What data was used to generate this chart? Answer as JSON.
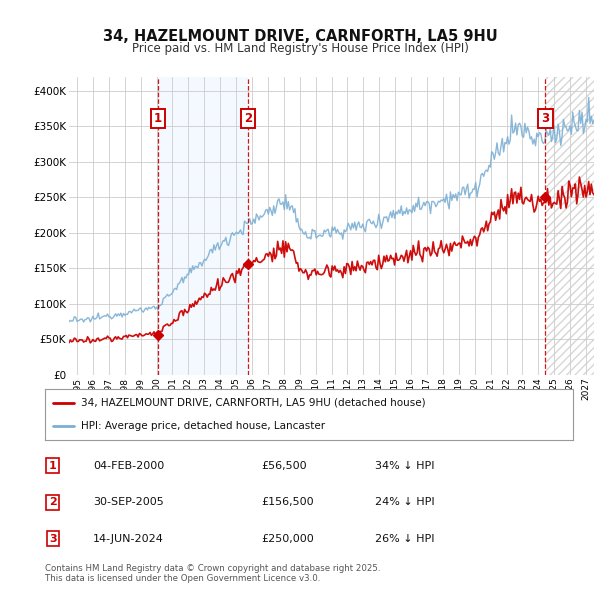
{
  "title": "34, HAZELMOUNT DRIVE, CARNFORTH, LA5 9HU",
  "subtitle": "Price paid vs. HM Land Registry's House Price Index (HPI)",
  "ylim": [
    0,
    420000
  ],
  "yticks": [
    0,
    50000,
    100000,
    150000,
    200000,
    250000,
    300000,
    350000,
    400000
  ],
  "ytick_labels": [
    "£0",
    "£50K",
    "£100K",
    "£150K",
    "£200K",
    "£250K",
    "£300K",
    "£350K",
    "£400K"
  ],
  "xlim_start": 1994.5,
  "xlim_end": 2027.5,
  "xtick_years": [
    1995,
    1996,
    1997,
    1998,
    1999,
    2000,
    2001,
    2002,
    2003,
    2004,
    2005,
    2006,
    2007,
    2008,
    2009,
    2010,
    2011,
    2012,
    2013,
    2014,
    2015,
    2016,
    2017,
    2018,
    2019,
    2020,
    2021,
    2022,
    2023,
    2024,
    2025,
    2026,
    2027
  ],
  "sale_dates": [
    2000.09,
    2005.75,
    2024.45
  ],
  "sale_prices": [
    56500,
    156500,
    250000
  ],
  "sale_labels": [
    "1",
    "2",
    "3"
  ],
  "hpi_color": "#7bafd4",
  "sale_color": "#cc0000",
  "vline_color": "#cc0000",
  "shading_color": "#ddeeff",
  "legend_line1": "34, HAZELMOUNT DRIVE, CARNFORTH, LA5 9HU (detached house)",
  "legend_line2": "HPI: Average price, detached house, Lancaster",
  "table_data": [
    [
      "1",
      "04-FEB-2000",
      "£56,500",
      "34% ↓ HPI"
    ],
    [
      "2",
      "30-SEP-2005",
      "£156,500",
      "24% ↓ HPI"
    ],
    [
      "3",
      "14-JUN-2024",
      "£250,000",
      "26% ↓ HPI"
    ]
  ],
  "footnote": "Contains HM Land Registry data © Crown copyright and database right 2025.\nThis data is licensed under the Open Government Licence v3.0.",
  "background_color": "#ffffff",
  "grid_color": "#cccccc"
}
